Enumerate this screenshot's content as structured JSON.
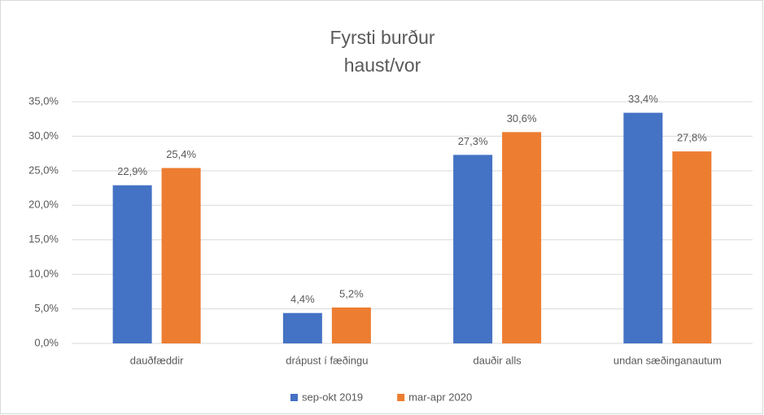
{
  "chart_data": {
    "type": "bar",
    "title": "Fyrsti burður",
    "subtitle": "haust/vor",
    "categories": [
      "dauðfæddir",
      "drápust í fæðingu",
      "dauðir alls",
      "undan sæðinganautum"
    ],
    "series": [
      {
        "name": "sep-okt 2019",
        "color": "#4472c4",
        "values": [
          22.9,
          4.4,
          27.3,
          33.4
        ],
        "value_labels": [
          "22,9%",
          "4,4%",
          "27,3%",
          "33,4%"
        ]
      },
      {
        "name": "mar-apr 2020",
        "color": "#ed7d31",
        "values": [
          25.4,
          5.2,
          30.6,
          27.8
        ],
        "value_labels": [
          "25,4%",
          "5,2%",
          "30,6%",
          "27,8%"
        ]
      }
    ],
    "ylim": [
      0,
      35
    ],
    "yticks": [
      {
        "value": 0,
        "label": "0,0%"
      },
      {
        "value": 5,
        "label": "5,0%"
      },
      {
        "value": 10,
        "label": "10,0%"
      },
      {
        "value": 15,
        "label": "15,0%"
      },
      {
        "value": 20,
        "label": "20,0%"
      },
      {
        "value": 25,
        "label": "25,0%"
      },
      {
        "value": 30,
        "label": "30,0%"
      },
      {
        "value": 35,
        "label": "35,0%"
      }
    ],
    "grid": true,
    "legend": "bottom"
  }
}
